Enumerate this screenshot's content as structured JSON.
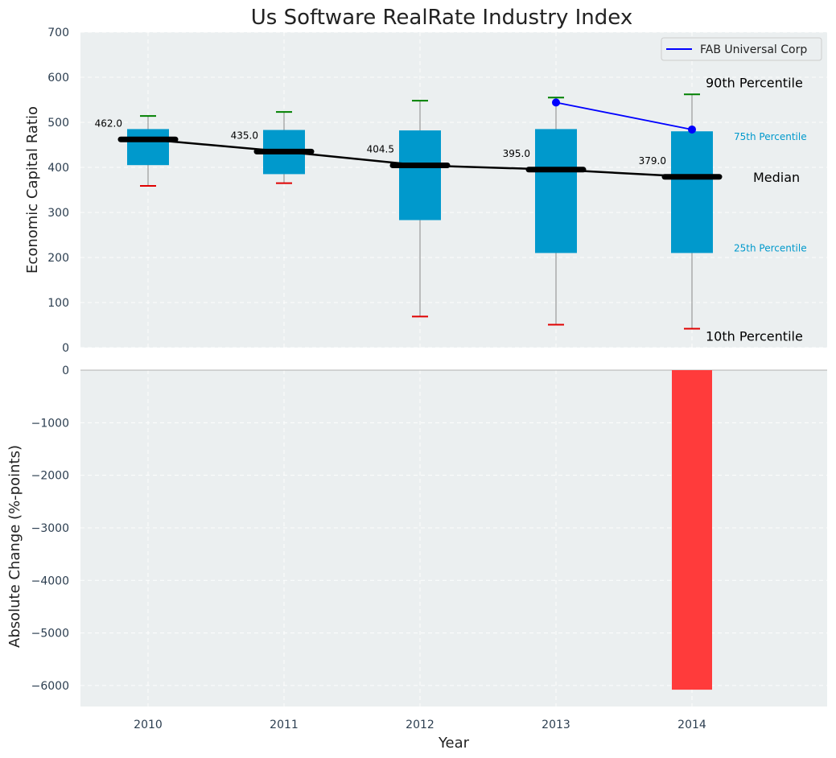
{
  "chart_data": [
    {
      "type": "box",
      "title": "Us Software RealRate Industry Index",
      "ylabel": "Economic Capital Ratio",
      "ylim": [
        0,
        700
      ],
      "yticks": [
        0,
        100,
        200,
        300,
        400,
        500,
        600,
        700
      ],
      "grid": true,
      "legend_position": "top-right",
      "categories": [
        "2010",
        "2011",
        "2012",
        "2013",
        "2014"
      ],
      "p10": [
        359,
        365,
        69,
        51,
        42
      ],
      "p25": [
        405,
        385,
        283,
        210,
        210
      ],
      "median": [
        462.0,
        435.0,
        404.5,
        395.0,
        379.0
      ],
      "p75": [
        485,
        483,
        482,
        485,
        480
      ],
      "p90": [
        514,
        523,
        548,
        555,
        562
      ],
      "median_labels": [
        "462.0",
        "435.0",
        "404.5",
        "395.0",
        "379.0"
      ],
      "series": [
        {
          "name": "FAB Universal Corp",
          "x": [
            "2013",
            "2014"
          ],
          "values": [
            544,
            484
          ]
        }
      ],
      "annotations": {
        "p90": "90th Percentile",
        "p75": "75th Percentile",
        "median": "Median",
        "p25": "25th Percentile",
        "p10": "10th Percentile"
      }
    },
    {
      "type": "bar",
      "xlabel": "Year",
      "ylabel": "Absolute Change (%-points)",
      "ylim": [
        -6400,
        0
      ],
      "yticks": [
        0,
        -1000,
        -2000,
        -3000,
        -4000,
        -5000,
        -6000
      ],
      "ytick_labels": [
        "0",
        "−1000",
        "−2000",
        "−3000",
        "−4000",
        "−5000",
        "−6000"
      ],
      "grid": true,
      "categories": [
        "2014"
      ],
      "values": [
        -6080
      ]
    }
  ],
  "colors": {
    "background": "#ebeff0",
    "box": "#0099cc",
    "median": "#000000",
    "p90_cap": "#008000",
    "p10_cap": "#e00000",
    "series": "#0000ff",
    "bar": "#ff3b3b",
    "annot_small": "#0099cc"
  }
}
